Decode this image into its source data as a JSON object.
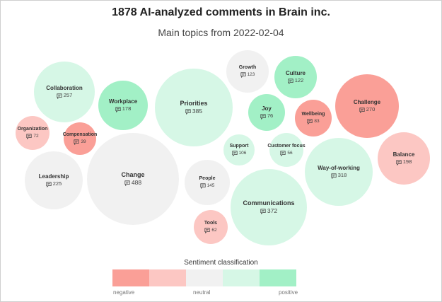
{
  "header": {
    "title": "1878 AI-analyzed comments in Brain inc.",
    "subtitle": "Main topics from 2022-02-04"
  },
  "sentiment_colors": {
    "negative": "#fa9f97",
    "slightly_negative": "#fcc7c3",
    "neutral": "#f1f1f1",
    "slightly_positive": "#d6f7e6",
    "positive": "#a2f0c6"
  },
  "topics": [
    {
      "name": "Collaboration",
      "count": "257",
      "sentiment": "slightly_positive"
    },
    {
      "name": "Workplace",
      "count": "178",
      "sentiment": "positive"
    },
    {
      "name": "Priorities",
      "count": "385",
      "sentiment": "slightly_positive"
    },
    {
      "name": "Growth",
      "count": "123",
      "sentiment": "neutral"
    },
    {
      "name": "Culture",
      "count": "122",
      "sentiment": "positive"
    },
    {
      "name": "Joy",
      "count": "76",
      "sentiment": "positive"
    },
    {
      "name": "Wellbeing",
      "count": "83",
      "sentiment": "negative"
    },
    {
      "name": "Challenge",
      "count": "270",
      "sentiment": "negative"
    },
    {
      "name": "Organization",
      "count": "72",
      "sentiment": "slightly_negative"
    },
    {
      "name": "Compensation",
      "count": "39",
      "sentiment": "negative"
    },
    {
      "name": "Support",
      "count": "106",
      "sentiment": "slightly_positive"
    },
    {
      "name": "Customer focus",
      "count": "56",
      "sentiment": "slightly_positive"
    },
    {
      "name": "Balance",
      "count": "198",
      "sentiment": "slightly_negative"
    },
    {
      "name": "Way-of-working",
      "count": "318",
      "sentiment": "slightly_positive"
    },
    {
      "name": "Leadership",
      "count": "225",
      "sentiment": "neutral"
    },
    {
      "name": "Change",
      "count": "488",
      "sentiment": "neutral"
    },
    {
      "name": "People",
      "count": "145",
      "sentiment": "neutral"
    },
    {
      "name": "Communications",
      "count": "372",
      "sentiment": "slightly_positive"
    },
    {
      "name": "Tools",
      "count": "62",
      "sentiment": "slightly_negative"
    }
  ],
  "legend": {
    "title": "Sentiment classification",
    "labels": {
      "negative": "negative",
      "neutral": "neutral",
      "positive": "positive"
    }
  }
}
